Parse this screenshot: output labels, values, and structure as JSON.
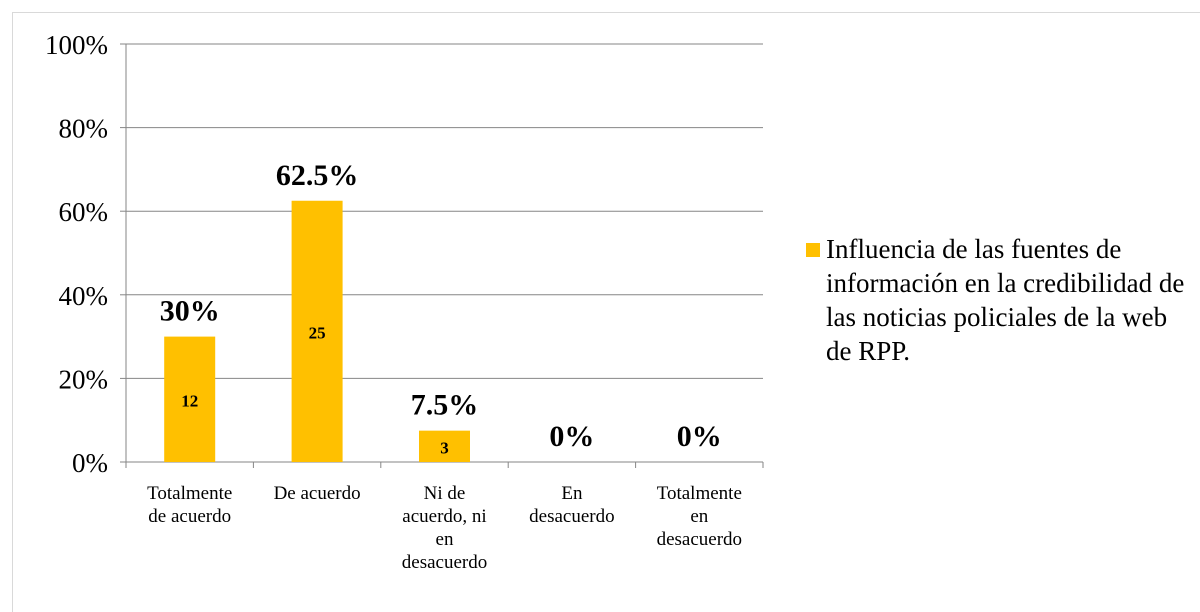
{
  "chart_data": {
    "type": "bar",
    "categories": [
      [
        "Totalmente",
        "de acuerdo"
      ],
      [
        "De acuerdo"
      ],
      [
        "Ni de",
        "acuerdo, ni",
        "en",
        "desacuerdo"
      ],
      [
        "En",
        "desacuerdo"
      ],
      [
        "Totalmente",
        "en",
        "desacuerdo"
      ]
    ],
    "series": [
      {
        "name": "Influencia de las fuentes de información en la credibilidad de las noticias policiales de la web de RPP.",
        "values": [
          30,
          62.5,
          7.5,
          0,
          0
        ],
        "percent_labels": [
          "30%",
          "62.5%",
          "7.5%",
          "0%",
          "0%"
        ],
        "count_labels": [
          "12",
          "25",
          "3",
          "",
          ""
        ],
        "color": "#ffc000"
      }
    ],
    "ylim": [
      0,
      100
    ],
    "yticks": [
      0,
      20,
      40,
      60,
      80,
      100
    ],
    "ytick_labels": [
      "0%",
      "20%",
      "40%",
      "60%",
      "80%",
      "100%"
    ],
    "grid": true,
    "legend": "right",
    "gridline_color": "#868686",
    "axis_color": "#868686"
  }
}
